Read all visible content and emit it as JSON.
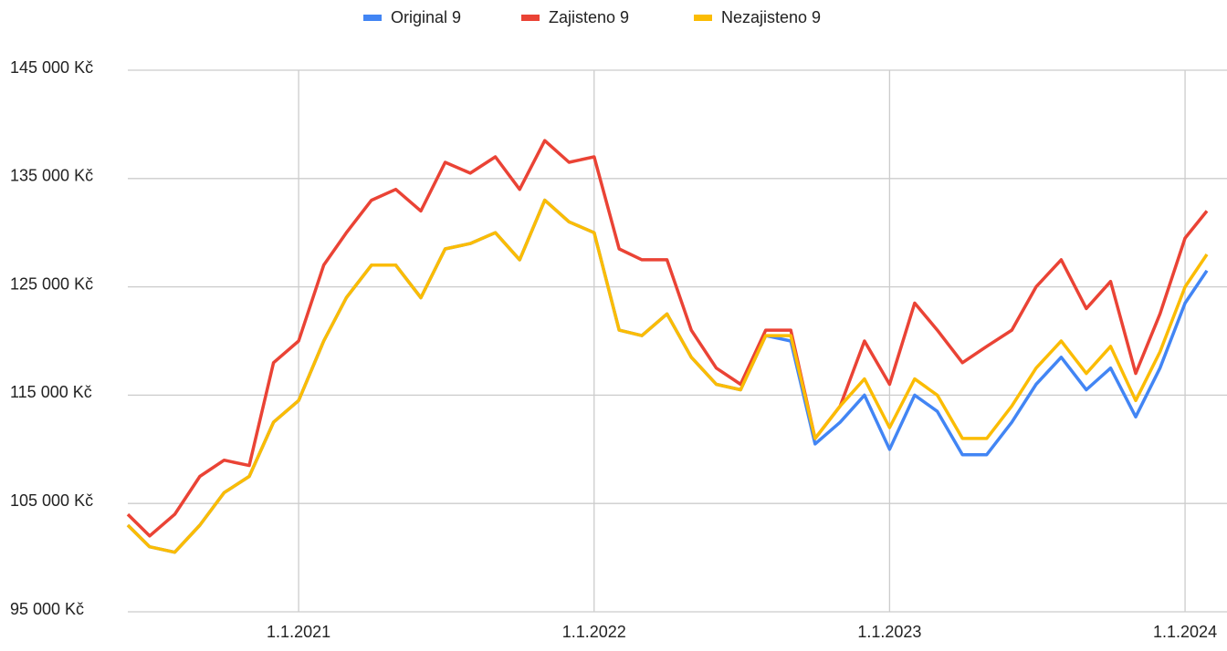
{
  "chart_data": {
    "type": "line",
    "x": [
      "2020-06-04",
      "2020-07-01",
      "2020-08-01",
      "2020-09-01",
      "2020-10-01",
      "2020-11-01",
      "2020-12-01",
      "2021-01-01",
      "2021-02-01",
      "2021-03-01",
      "2021-04-01",
      "2021-05-01",
      "2021-06-01",
      "2021-07-01",
      "2021-08-01",
      "2021-09-01",
      "2021-10-01",
      "2021-11-01",
      "2021-12-01",
      "2022-01-01",
      "2022-02-01",
      "2022-03-01",
      "2022-04-01",
      "2022-05-01",
      "2022-06-01",
      "2022-07-01",
      "2022-08-01",
      "2022-09-01",
      "2022-10-01",
      "2022-11-01",
      "2022-12-01",
      "2023-01-01",
      "2023-02-01",
      "2023-03-01",
      "2023-04-01",
      "2023-05-01",
      "2023-06-01",
      "2023-07-01",
      "2023-08-01",
      "2023-09-01",
      "2023-10-01",
      "2023-11-01",
      "2023-12-01",
      "2024-01-01",
      "2024-01-28"
    ],
    "series": [
      {
        "name": "Original 9",
        "color": "#4285f4",
        "values": [
          103000,
          101000,
          100500,
          103000,
          106000,
          107500,
          112500,
          114500,
          120000,
          124000,
          127000,
          127000,
          124000,
          128500,
          129000,
          130000,
          127500,
          133000,
          131000,
          130000,
          121000,
          120500,
          122500,
          118500,
          116000,
          115500,
          120500,
          120000,
          110500,
          112500,
          115000,
          110000,
          115000,
          113500,
          109500,
          109500,
          112500,
          116000,
          118500,
          115500,
          117500,
          113000,
          117500,
          123500,
          126500
        ]
      },
      {
        "name": "Zajisteno 9",
        "color": "#ea4335",
        "values": [
          104000,
          102000,
          104000,
          107500,
          109000,
          108500,
          118000,
          120000,
          127000,
          130000,
          133000,
          134000,
          132000,
          136500,
          135500,
          137000,
          134000,
          138500,
          136500,
          137000,
          128500,
          127500,
          127500,
          121000,
          117500,
          116000,
          121000,
          121000,
          111000,
          114000,
          120000,
          116000,
          123500,
          121000,
          118000,
          119500,
          121000,
          125000,
          127500,
          123000,
          125500,
          117000,
          122500,
          129500,
          132000
        ]
      },
      {
        "name": "Nezajisteno 9",
        "color": "#fbbc04",
        "values": [
          103000,
          101000,
          100500,
          103000,
          106000,
          107500,
          112500,
          114500,
          120000,
          124000,
          127000,
          127000,
          124000,
          128500,
          129000,
          130000,
          127500,
          133000,
          131000,
          130000,
          121000,
          120500,
          122500,
          118500,
          116000,
          115500,
          120500,
          120500,
          111000,
          114000,
          116500,
          112000,
          116500,
          115000,
          111000,
          111000,
          114000,
          117500,
          120000,
          117000,
          119500,
          114500,
          119000,
          125000,
          128000
        ]
      }
    ],
    "xlim": [
      "2020-06-04",
      "2024-01-28"
    ],
    "xticks": [
      {
        "value": "2021-01-01",
        "label": "1.1.2021"
      },
      {
        "value": "2022-01-01",
        "label": "1.1.2022"
      },
      {
        "value": "2023-01-01",
        "label": "1.1.2023"
      },
      {
        "value": "2024-01-01",
        "label": "1.1.2024"
      }
    ],
    "ylim": [
      95000,
      145000
    ],
    "yticks": [
      {
        "value": 95000,
        "label": "95 000 Kč"
      },
      {
        "value": 105000,
        "label": "105 000 Kč"
      },
      {
        "value": 115000,
        "label": "115 000 Kč"
      },
      {
        "value": 125000,
        "label": "125 000 Kč"
      },
      {
        "value": 135000,
        "label": "135 000 Kč"
      },
      {
        "value": 145000,
        "label": "145 000 Kč"
      }
    ],
    "grid": true,
    "legend": "top"
  }
}
